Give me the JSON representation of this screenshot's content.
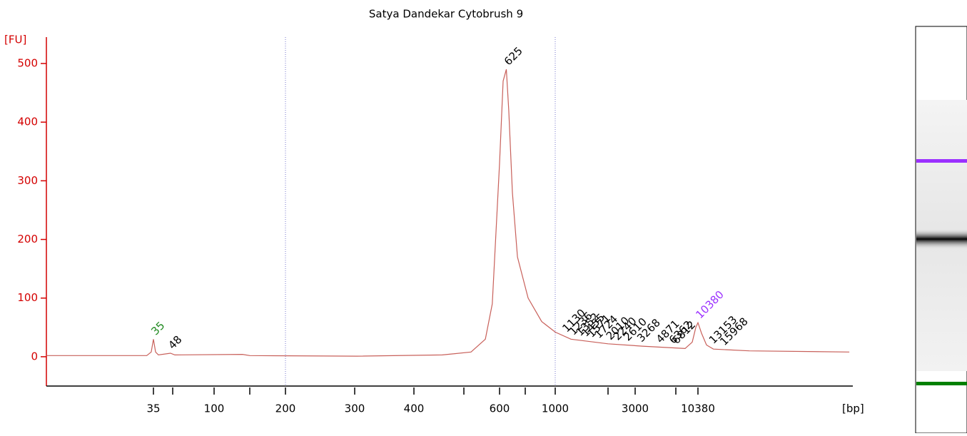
{
  "chart_data": {
    "type": "line",
    "title": "Satya Dandekar Cytobrush 9",
    "y_label": "[FU]",
    "x_label": "[bp]",
    "x": [
      5,
      15,
      31,
      33.6,
      35,
      36.4,
      38.4,
      48,
      51.8,
      138,
      150,
      303,
      454,
      518.6,
      558,
      578,
      600,
      613,
      625,
      634,
      648,
      668,
      724,
      851,
      1000,
      1229,
      2000,
      3480,
      8260,
      9375,
      9990,
      10380,
      11060,
      12090,
      13653,
      25900,
      153700
    ],
    "values": [
      2,
      2,
      2,
      8,
      30,
      8,
      3,
      6,
      3,
      4,
      2,
      1,
      3,
      8,
      30,
      90,
      330,
      470,
      490,
      420,
      280,
      170,
      100,
      60,
      42,
      30,
      22,
      18,
      14,
      25,
      50,
      58,
      40,
      20,
      13,
      10,
      8
    ],
    "color": "#c8605a",
    "axis_color": "#d40000",
    "xlim": [
      5,
      163500
    ],
    "ylim": [
      -50,
      545
    ],
    "xticks": [
      35,
      100,
      200,
      300,
      400,
      600,
      1000,
      3000,
      10380
    ],
    "minor_xticks": [
      50,
      150,
      500,
      700,
      2000,
      7000
    ],
    "yticks": [
      0,
      100,
      200,
      300,
      400,
      500
    ],
    "peak_labels": {
      "values": [
        35,
        48,
        625,
        1130,
        1236,
        1352,
        1455,
        1571,
        1724,
        2010,
        2240,
        2610,
        3268,
        4871,
        6362,
        6812,
        10380,
        13153,
        15968
      ],
      "colors": [
        "#228b22",
        "#000000",
        "#000000",
        "#000000",
        "#000000",
        "#000000",
        "#000000",
        "#000000",
        "#000000",
        "#000000",
        "#000000",
        "#000000",
        "#000000",
        "#000000",
        "#000000",
        "#000000",
        "#9b30ff",
        "#000000",
        "#000000"
      ]
    }
  }
}
